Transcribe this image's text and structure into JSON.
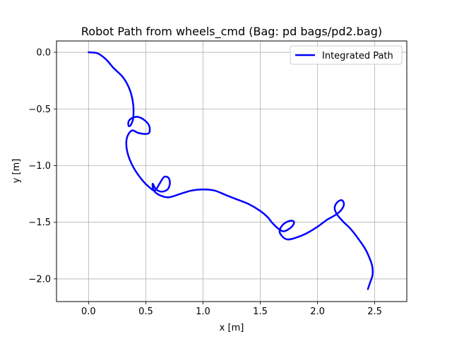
{
  "chart_data": {
    "type": "line",
    "title": "Robot Path from wheels_cmd (Bag: pd bags/pd2.bag)",
    "xlabel": "x [m]",
    "ylabel": "y [m]",
    "xlim": [
      -0.28,
      2.78
    ],
    "ylim": [
      -2.2,
      0.1
    ],
    "xticks": [
      0.0,
      0.5,
      1.0,
      1.5,
      2.0,
      2.5
    ],
    "xtick_labels": [
      "0.0",
      "0.5",
      "1.0",
      "1.5",
      "2.0",
      "2.5"
    ],
    "yticks": [
      0.0,
      -0.5,
      -1.0,
      -1.5,
      -2.0
    ],
    "ytick_labels": [
      "0.0",
      "−0.5",
      "−1.0",
      "−1.5",
      "−2.0"
    ],
    "grid": true,
    "legend_position": "top-right",
    "series": [
      {
        "name": "Integrated Path",
        "color": "#0000ff",
        "x": [
          0.0,
          0.08,
          0.15,
          0.22,
          0.3,
          0.36,
          0.39,
          0.39,
          0.37,
          0.35,
          0.35,
          0.38,
          0.43,
          0.49,
          0.53,
          0.53,
          0.49,
          0.43,
          0.38,
          0.34,
          0.33,
          0.35,
          0.4,
          0.47,
          0.53,
          0.58,
          0.62,
          0.66,
          0.7,
          0.71,
          0.69,
          0.64,
          0.59,
          0.56,
          0.57,
          0.62,
          0.7,
          0.8,
          0.9,
          1.0,
          1.1,
          1.2,
          1.3,
          1.4,
          1.5,
          1.56,
          1.6,
          1.65,
          1.7,
          1.75,
          1.79,
          1.79,
          1.75,
          1.7,
          1.67,
          1.68,
          1.73,
          1.8,
          1.9,
          2.0,
          2.08,
          2.15,
          2.2,
          2.23,
          2.22,
          2.19,
          2.16,
          2.15,
          2.17,
          2.22,
          2.29,
          2.36,
          2.42,
          2.46,
          2.48,
          2.48,
          2.46,
          2.44
        ],
        "y": [
          0.0,
          -0.01,
          -0.06,
          -0.14,
          -0.22,
          -0.33,
          -0.46,
          -0.58,
          -0.64,
          -0.65,
          -0.61,
          -0.58,
          -0.57,
          -0.6,
          -0.65,
          -0.71,
          -0.72,
          -0.71,
          -0.69,
          -0.74,
          -0.82,
          -0.92,
          -1.03,
          -1.13,
          -1.19,
          -1.22,
          -1.16,
          -1.1,
          -1.11,
          -1.16,
          -1.21,
          -1.23,
          -1.21,
          -1.16,
          -1.22,
          -1.26,
          -1.28,
          -1.25,
          -1.22,
          -1.21,
          -1.22,
          -1.26,
          -1.3,
          -1.34,
          -1.4,
          -1.45,
          -1.5,
          -1.55,
          -1.58,
          -1.56,
          -1.52,
          -1.49,
          -1.49,
          -1.52,
          -1.57,
          -1.61,
          -1.65,
          -1.64,
          -1.6,
          -1.54,
          -1.48,
          -1.44,
          -1.4,
          -1.35,
          -1.31,
          -1.31,
          -1.34,
          -1.38,
          -1.43,
          -1.49,
          -1.56,
          -1.65,
          -1.74,
          -1.83,
          -1.9,
          -1.97,
          -2.03,
          -2.09
        ]
      }
    ]
  }
}
